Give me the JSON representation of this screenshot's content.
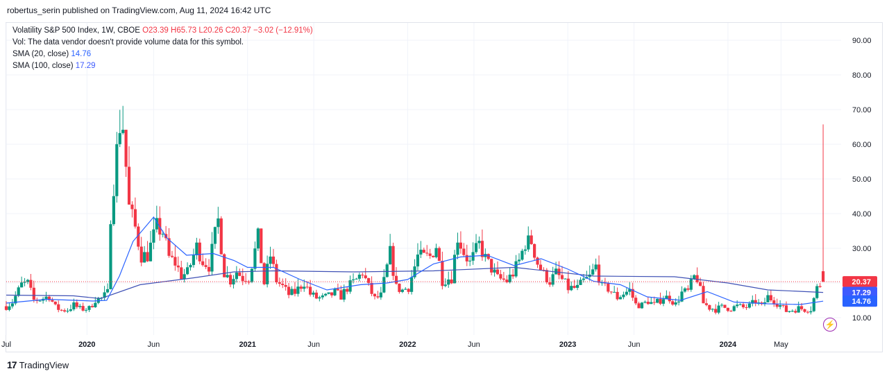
{
  "header": {
    "published": "robertus_serin published on TradingView.com, Aug 11, 2024 16:42 UTC"
  },
  "legend": {
    "symbol": "Volatility S&P 500 Index, 1W, CBOE",
    "ohlc": {
      "o": "O23.39",
      "h": "H65.73",
      "l": "L20.26",
      "c": "C20.37",
      "chg": "−3.02 (−12.91%)"
    },
    "volume": "Vol: The data vendor doesn't provide volume data for this symbol.",
    "sma20": {
      "label": "SMA (20, close)",
      "value": "14.76"
    },
    "sma100": {
      "label": "SMA (100, close)",
      "value": "17.29"
    }
  },
  "footer": {
    "brand": "TradingView",
    "logo_icon": "tradingview-logo-icon"
  },
  "colors": {
    "up": "#089981",
    "down": "#f23645",
    "sma20": "#2962ff",
    "sma100": "#3f51b5",
    "grid": "#f0f3fa"
  },
  "chart_data": {
    "type": "candlestick",
    "ylim": [
      5,
      95
    ],
    "y_ticks": [
      "10.00",
      "20.00",
      "30.00",
      "40.00",
      "50.00",
      "60.00",
      "70.00",
      "80.00",
      "90.00"
    ],
    "x_ticks": [
      "Jul",
      "2020",
      "Jun",
      "2021",
      "Jun",
      "2022",
      "Jun",
      "2023",
      "Jun",
      "2024",
      "May"
    ],
    "x_range": [
      "2019-07-01",
      "2024-09-15"
    ],
    "price_labels": [
      {
        "value": "20.37",
        "y": 20.37,
        "color": "#f23645"
      },
      {
        "value": "17.29",
        "y": 17.29,
        "color": "#3d5afe"
      },
      {
        "value": "14.76",
        "y": 14.76,
        "color": "#2962ff"
      }
    ],
    "close_series": [
      [
        "2019-07-01",
        13.3
      ],
      [
        "2019-07-15",
        14.5
      ],
      [
        "2019-08-05",
        19.5
      ],
      [
        "2019-08-19",
        19.9
      ],
      [
        "2019-09-02",
        15.0
      ],
      [
        "2019-09-16",
        15.3
      ],
      [
        "2019-10-07",
        16.2
      ],
      [
        "2019-10-21",
        13.0
      ],
      [
        "2019-11-04",
        12.1
      ],
      [
        "2019-11-18",
        12.3
      ],
      [
        "2019-12-02",
        13.6
      ],
      [
        "2019-12-16",
        12.5
      ],
      [
        "2020-01-06",
        12.6
      ],
      [
        "2020-01-20",
        15.3
      ],
      [
        "2020-02-03",
        15.5
      ],
      [
        "2020-02-17",
        17.1
      ],
      [
        "2020-02-24",
        40.1
      ],
      [
        "2020-03-09",
        57.8
      ],
      [
        "2020-03-16",
        66.0
      ],
      [
        "2020-03-23",
        65.5
      ],
      [
        "2020-04-06",
        41.7
      ],
      [
        "2020-04-20",
        35.9
      ],
      [
        "2020-05-04",
        27.9
      ],
      [
        "2020-05-18",
        28.0
      ],
      [
        "2020-06-08",
        36.1
      ],
      [
        "2020-06-22",
        34.7
      ],
      [
        "2020-07-06",
        27.3
      ],
      [
        "2020-07-20",
        25.8
      ],
      [
        "2020-08-03",
        22.2
      ],
      [
        "2020-08-17",
        22.9
      ],
      [
        "2020-09-07",
        30.4
      ],
      [
        "2020-09-21",
        26.4
      ],
      [
        "2020-10-05",
        25.0
      ],
      [
        "2020-10-26",
        38.0
      ],
      [
        "2020-11-09",
        23.1
      ],
      [
        "2020-11-23",
        20.8
      ],
      [
        "2020-12-07",
        23.3
      ],
      [
        "2020-12-21",
        21.5
      ],
      [
        "2021-01-04",
        21.6
      ],
      [
        "2021-01-25",
        33.1
      ],
      [
        "2021-02-08",
        19.9
      ],
      [
        "2021-02-22",
        27.9
      ],
      [
        "2021-03-08",
        20.7
      ],
      [
        "2021-03-22",
        18.9
      ],
      [
        "2021-04-05",
        16.7
      ],
      [
        "2021-04-19",
        17.3
      ],
      [
        "2021-05-10",
        20.2
      ],
      [
        "2021-05-24",
        16.8
      ],
      [
        "2021-06-07",
        15.7
      ],
      [
        "2021-06-21",
        15.6
      ],
      [
        "2021-07-05",
        16.2
      ],
      [
        "2021-07-19",
        17.2
      ],
      [
        "2021-08-02",
        16.2
      ],
      [
        "2021-08-16",
        18.6
      ],
      [
        "2021-09-06",
        20.9
      ],
      [
        "2021-09-20",
        23.1
      ],
      [
        "2021-10-04",
        18.8
      ],
      [
        "2021-10-18",
        15.4
      ],
      [
        "2021-11-01",
        16.3
      ],
      [
        "2021-11-22",
        28.6
      ],
      [
        "2021-12-06",
        18.7
      ],
      [
        "2021-12-20",
        17.9
      ],
      [
        "2022-01-03",
        18.8
      ],
      [
        "2022-01-24",
        27.7
      ],
      [
        "2022-02-07",
        27.4
      ],
      [
        "2022-02-21",
        27.6
      ],
      [
        "2022-03-07",
        30.8
      ],
      [
        "2022-03-21",
        20.8
      ],
      [
        "2022-04-11",
        21.6
      ],
      [
        "2022-04-25",
        33.4
      ],
      [
        "2022-05-09",
        28.9
      ],
      [
        "2022-05-23",
        25.7
      ],
      [
        "2022-06-13",
        31.1
      ],
      [
        "2022-06-27",
        27.0
      ],
      [
        "2022-07-11",
        24.2
      ],
      [
        "2022-07-25",
        21.3
      ],
      [
        "2022-08-15",
        20.6
      ],
      [
        "2022-08-29",
        22.8
      ],
      [
        "2022-09-12",
        26.3
      ],
      [
        "2022-09-26",
        31.6
      ],
      [
        "2022-10-10",
        32.0
      ],
      [
        "2022-10-24",
        25.8
      ],
      [
        "2022-11-07",
        22.5
      ],
      [
        "2022-11-21",
        20.5
      ],
      [
        "2022-12-05",
        22.8
      ],
      [
        "2022-12-19",
        20.9
      ],
      [
        "2023-01-02",
        18.5
      ],
      [
        "2023-01-23",
        18.5
      ],
      [
        "2023-02-06",
        20.5
      ],
      [
        "2023-02-20",
        21.7
      ],
      [
        "2023-03-06",
        24.8
      ],
      [
        "2023-03-20",
        18.7
      ],
      [
        "2023-04-03",
        18.4
      ],
      [
        "2023-04-24",
        15.8
      ],
      [
        "2023-05-08",
        17.0
      ],
      [
        "2023-05-22",
        17.9
      ],
      [
        "2023-06-05",
        13.8
      ],
      [
        "2023-06-19",
        13.6
      ],
      [
        "2023-07-03",
        14.8
      ],
      [
        "2023-07-17",
        13.6
      ],
      [
        "2023-08-07",
        15.9
      ],
      [
        "2023-08-21",
        15.7
      ],
      [
        "2023-09-04",
        13.8
      ],
      [
        "2023-09-18",
        17.2
      ],
      [
        "2023-10-02",
        17.5
      ],
      [
        "2023-10-16",
        21.7
      ],
      [
        "2023-10-23",
        21.3
      ],
      [
        "2023-11-06",
        14.2
      ],
      [
        "2023-11-20",
        12.9
      ],
      [
        "2023-12-04",
        12.4
      ],
      [
        "2023-12-18",
        13.0
      ],
      [
        "2024-01-08",
        12.7
      ],
      [
        "2024-01-22",
        13.3
      ],
      [
        "2024-02-05",
        12.9
      ],
      [
        "2024-02-19",
        13.3
      ],
      [
        "2024-03-04",
        14.7
      ],
      [
        "2024-03-18",
        13.1
      ],
      [
        "2024-04-01",
        16.0
      ],
      [
        "2024-04-15",
        15.0
      ],
      [
        "2024-04-29",
        13.5
      ],
      [
        "2024-05-13",
        11.9
      ],
      [
        "2024-05-27",
        12.2
      ],
      [
        "2024-06-10",
        12.7
      ],
      [
        "2024-06-24",
        12.4
      ],
      [
        "2024-07-08",
        12.5
      ],
      [
        "2024-07-22",
        18.5
      ],
      [
        "2024-08-05",
        20.37
      ]
    ],
    "sma20_series": [
      [
        "2019-07-01",
        14.2
      ],
      [
        "2019-10-01",
        15.3
      ],
      [
        "2020-01-15",
        14.8
      ],
      [
        "2020-02-15",
        15.0
      ],
      [
        "2020-03-15",
        22.0
      ],
      [
        "2020-04-15",
        32.0
      ],
      [
        "2020-06-01",
        39.0
      ],
      [
        "2020-07-01",
        33.0
      ],
      [
        "2020-08-15",
        28.0
      ],
      [
        "2020-10-15",
        28.5
      ],
      [
        "2020-12-01",
        26.5
      ],
      [
        "2021-01-01",
        24.5
      ],
      [
        "2021-03-01",
        24.5
      ],
      [
        "2021-05-01",
        21.0
      ],
      [
        "2021-07-01",
        18.0
      ],
      [
        "2021-09-15",
        19.5
      ],
      [
        "2021-11-15",
        20.0
      ],
      [
        "2022-01-01",
        21.0
      ],
      [
        "2022-03-01",
        25.5
      ],
      [
        "2022-05-01",
        27.5
      ],
      [
        "2022-07-01",
        28.0
      ],
      [
        "2022-09-01",
        25.0
      ],
      [
        "2022-11-01",
        27.0
      ],
      [
        "2023-01-01",
        24.0
      ],
      [
        "2023-03-01",
        20.5
      ],
      [
        "2023-05-01",
        19.5
      ],
      [
        "2023-07-01",
        16.0
      ],
      [
        "2023-09-15",
        15.0
      ],
      [
        "2023-11-15",
        17.5
      ],
      [
        "2024-01-15",
        14.5
      ],
      [
        "2024-04-01",
        14.0
      ],
      [
        "2024-06-15",
        13.8
      ],
      [
        "2024-08-05",
        14.76
      ]
    ],
    "sma100_series": [
      [
        "2019-07-01",
        16.5
      ],
      [
        "2019-12-01",
        16.3
      ],
      [
        "2020-02-01",
        15.5
      ],
      [
        "2020-05-01",
        19.5
      ],
      [
        "2020-09-01",
        21.5
      ],
      [
        "2020-12-01",
        23.2
      ],
      [
        "2021-03-01",
        23.5
      ],
      [
        "2021-09-01",
        23.2
      ],
      [
        "2022-03-01",
        23.5
      ],
      [
        "2022-09-01",
        24.5
      ],
      [
        "2023-03-01",
        22.0
      ],
      [
        "2023-09-01",
        21.8
      ],
      [
        "2024-01-01",
        20.0
      ],
      [
        "2024-04-01",
        18.0
      ],
      [
        "2024-08-05",
        17.29
      ]
    ]
  }
}
